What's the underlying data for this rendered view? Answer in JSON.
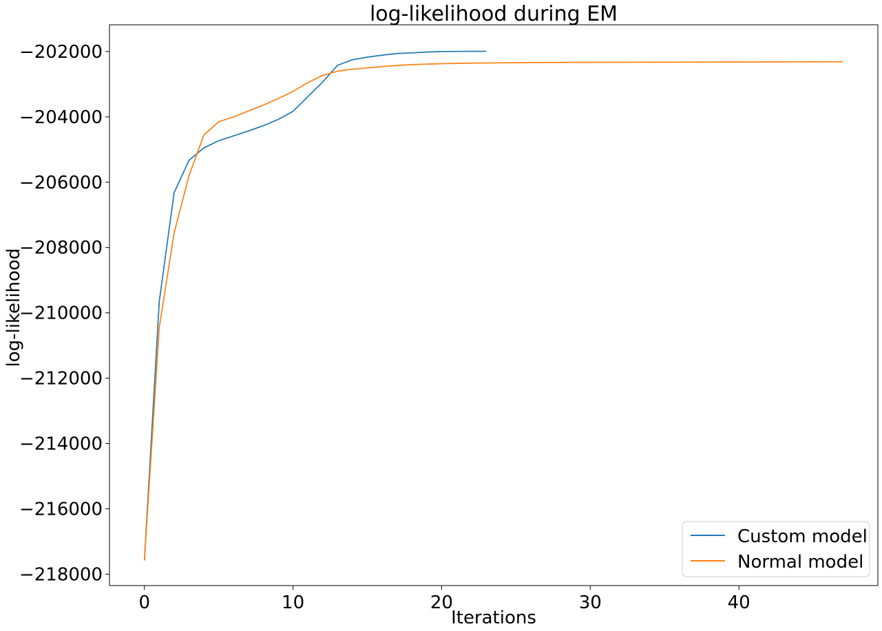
{
  "chart_data": {
    "type": "line",
    "title": "log-likelihood during EM",
    "xlabel": "Iterations",
    "ylabel": "log-likelihood",
    "xlim": [
      -2.35,
      49.35
    ],
    "ylim": [
      -218350,
      -201180
    ],
    "xticks": [
      0,
      10,
      20,
      30,
      40
    ],
    "xtick_labels": [
      "0",
      "10",
      "20",
      "30",
      "40"
    ],
    "yticks": [
      -218000,
      -216000,
      -214000,
      -212000,
      -210000,
      -208000,
      -206000,
      -204000,
      -202000
    ],
    "ytick_labels": [
      "−218000",
      "−216000",
      "−214000",
      "−212000",
      "−210000",
      "−208000",
      "−206000",
      "−204000",
      "−202000"
    ],
    "grid": false,
    "legend_position": "lower-right",
    "series": [
      {
        "name": "Custom model",
        "color": "#1f77b4",
        "x": [
          0,
          1,
          2,
          3,
          4,
          5,
          6,
          7,
          8,
          9,
          10,
          11,
          12,
          13,
          14,
          15,
          16,
          17,
          18,
          19,
          20,
          21,
          22,
          23
        ],
        "values": [
          -217580,
          -209650,
          -206320,
          -205330,
          -204950,
          -204730,
          -204580,
          -204430,
          -204270,
          -204080,
          -203830,
          -203380,
          -202930,
          -202420,
          -202250,
          -202170,
          -202110,
          -202060,
          -202040,
          -202015,
          -202000,
          -201995,
          -201993,
          -201992
        ]
      },
      {
        "name": "Normal model",
        "color": "#ff7f0e",
        "x": [
          0,
          1,
          2,
          3,
          4,
          5,
          6,
          7,
          8,
          9,
          10,
          11,
          12,
          13,
          14,
          15,
          16,
          17,
          18,
          19,
          20,
          21,
          22,
          23,
          24,
          25,
          26,
          27,
          28,
          29,
          30,
          31,
          32,
          33,
          34,
          35,
          36,
          37,
          38,
          39,
          40,
          41,
          42,
          43,
          44,
          45,
          46,
          47
        ],
        "values": [
          -217580,
          -210450,
          -207550,
          -205800,
          -204560,
          -204150,
          -204000,
          -203820,
          -203640,
          -203440,
          -203220,
          -202950,
          -202730,
          -202600,
          -202540,
          -202500,
          -202460,
          -202425,
          -202400,
          -202385,
          -202372,
          -202362,
          -202355,
          -202350,
          -202345,
          -202341,
          -202338,
          -202335,
          -202333,
          -202331,
          -202330,
          -202329,
          -202328,
          -202327,
          -202326,
          -202325,
          -202324,
          -202323,
          -202322,
          -202321,
          -202320,
          -202319,
          -202318,
          -202317,
          -202316,
          -202315,
          -202314,
          -202313
        ]
      }
    ]
  }
}
